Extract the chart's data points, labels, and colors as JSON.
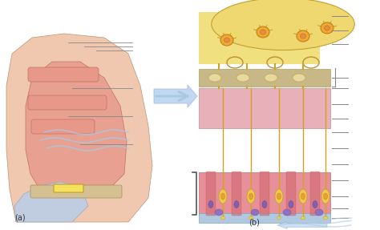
{
  "fig_width": 4.74,
  "fig_height": 2.87,
  "dpi": 100,
  "bg_color": "#ffffff",
  "label_a": "(a)",
  "label_b": "(b)",
  "arrow_color": "#a8c8e0",
  "line_color": "#888888",
  "bracket_color": "#555555",
  "nasal_cross_color": "#e8a090",
  "nasal_bg_color": "#f0c8b0",
  "epithelium_pink": "#e8909a",
  "epithelium_yellow": "#f0c850",
  "lamina_propria_pink": "#e8b0b8",
  "bone_color": "#d4c090",
  "cribriform_color": "#c8b888",
  "olfactory_bulb_color": "#f0d870",
  "neuron_body_color": "#f0a830",
  "axon_color": "#d4a020",
  "support_cell_color": "#e87878",
  "basal_cell_color": "#9070c0",
  "mucus_color": "#b0c8e0"
}
